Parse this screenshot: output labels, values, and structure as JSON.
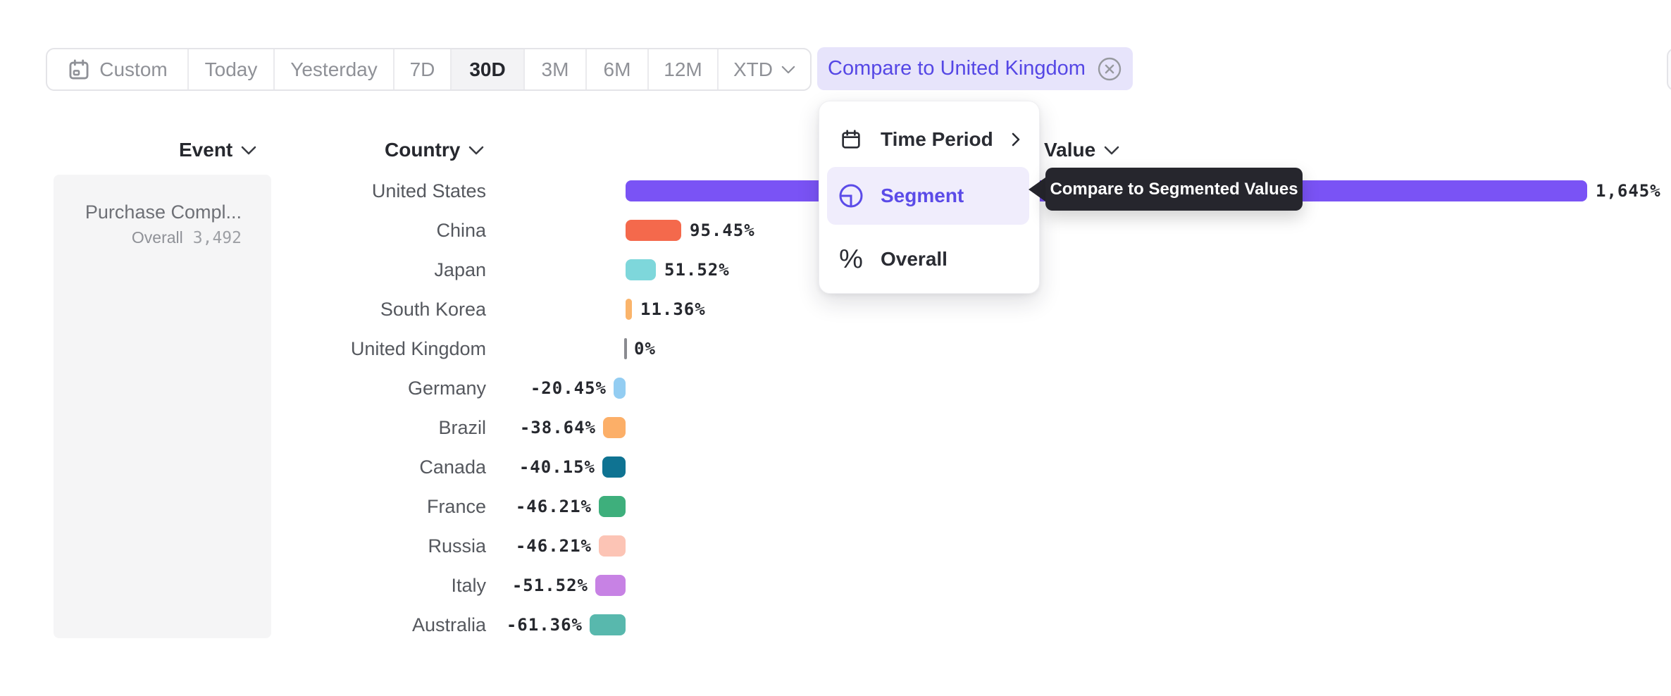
{
  "toolbar": {
    "items": [
      {
        "label": "Custom",
        "icon": "calendar-icon",
        "selected": false,
        "chevron": false
      },
      {
        "label": "Today",
        "icon": null,
        "selected": false,
        "chevron": false
      },
      {
        "label": "Yesterday",
        "icon": null,
        "selected": false,
        "chevron": false
      },
      {
        "label": "7D",
        "icon": null,
        "selected": false,
        "chevron": false
      },
      {
        "label": "30D",
        "icon": null,
        "selected": true,
        "chevron": false
      },
      {
        "label": "3M",
        "icon": null,
        "selected": false,
        "chevron": false
      },
      {
        "label": "6M",
        "icon": null,
        "selected": false,
        "chevron": false
      },
      {
        "label": "12M",
        "icon": null,
        "selected": false,
        "chevron": false
      },
      {
        "label": "XTD",
        "icon": null,
        "selected": false,
        "chevron": true
      }
    ],
    "compare_chip": {
      "label": "Compare to United Kingdom",
      "close_icon": "x-circle-icon"
    }
  },
  "columns": {
    "event": "Event",
    "country": "Country",
    "value": "Value"
  },
  "event_panel": {
    "event_name": "Purchase Compl...",
    "overall_label": "Overall",
    "overall_value": "3,492"
  },
  "chart_data": {
    "type": "bar",
    "orientation": "horizontal",
    "categories": [
      "United States",
      "China",
      "Japan",
      "South Korea",
      "United Kingdom",
      "Germany",
      "Brazil",
      "Canada",
      "France",
      "Russia",
      "Italy",
      "Australia"
    ],
    "values": [
      1645,
      95.45,
      51.52,
      11.36,
      0,
      -20.45,
      -38.64,
      -40.15,
      -46.21,
      -46.21,
      -51.52,
      -61.36
    ],
    "value_labels": [
      "1,645%",
      "95.45%",
      "51.52%",
      "11.36%",
      "0%",
      "-20.45%",
      "-38.64%",
      "-40.15%",
      "-46.21%",
      "-46.21%",
      "-51.52%",
      "-61.36%"
    ],
    "colors": [
      "#7A53F5",
      "#F4694C",
      "#7ED7DB",
      "#FAB46B",
      "#8A8B90",
      "#93CDF2",
      "#FCAF68",
      "#0F7392",
      "#3EAF7C",
      "#FCC4B5",
      "#C782E4",
      "#58B8AD"
    ],
    "patterned": [
      false,
      false,
      false,
      false,
      false,
      true,
      true,
      false,
      false,
      false,
      false,
      false
    ],
    "xlabel": "",
    "ylabel": "",
    "unit": "%",
    "baseline": 0,
    "grid": false,
    "legend": false
  },
  "menu": {
    "items": [
      {
        "icon": "calendar-icon",
        "label": "Time Period",
        "selected": false,
        "has_submenu": true
      },
      {
        "icon": "segment-icon",
        "label": "Segment",
        "selected": true,
        "has_submenu": false
      },
      {
        "icon": "percent-icon",
        "label": "Overall",
        "selected": false,
        "has_submenu": false
      }
    ]
  },
  "tooltip": {
    "text": "Compare to Segmented Values"
  },
  "theme": {
    "accent": "#5B4BE8",
    "chip_bg": "#E7E4FB",
    "chip_text": "#5547E5",
    "menu_highlight_bg": "#F0EDFC",
    "tooltip_bg": "#26262D",
    "panel_bg": "#F5F5F6",
    "toolbar_border": "#E4E4E8",
    "text_dark": "#26282E",
    "text_gray": "#8F9197"
  }
}
